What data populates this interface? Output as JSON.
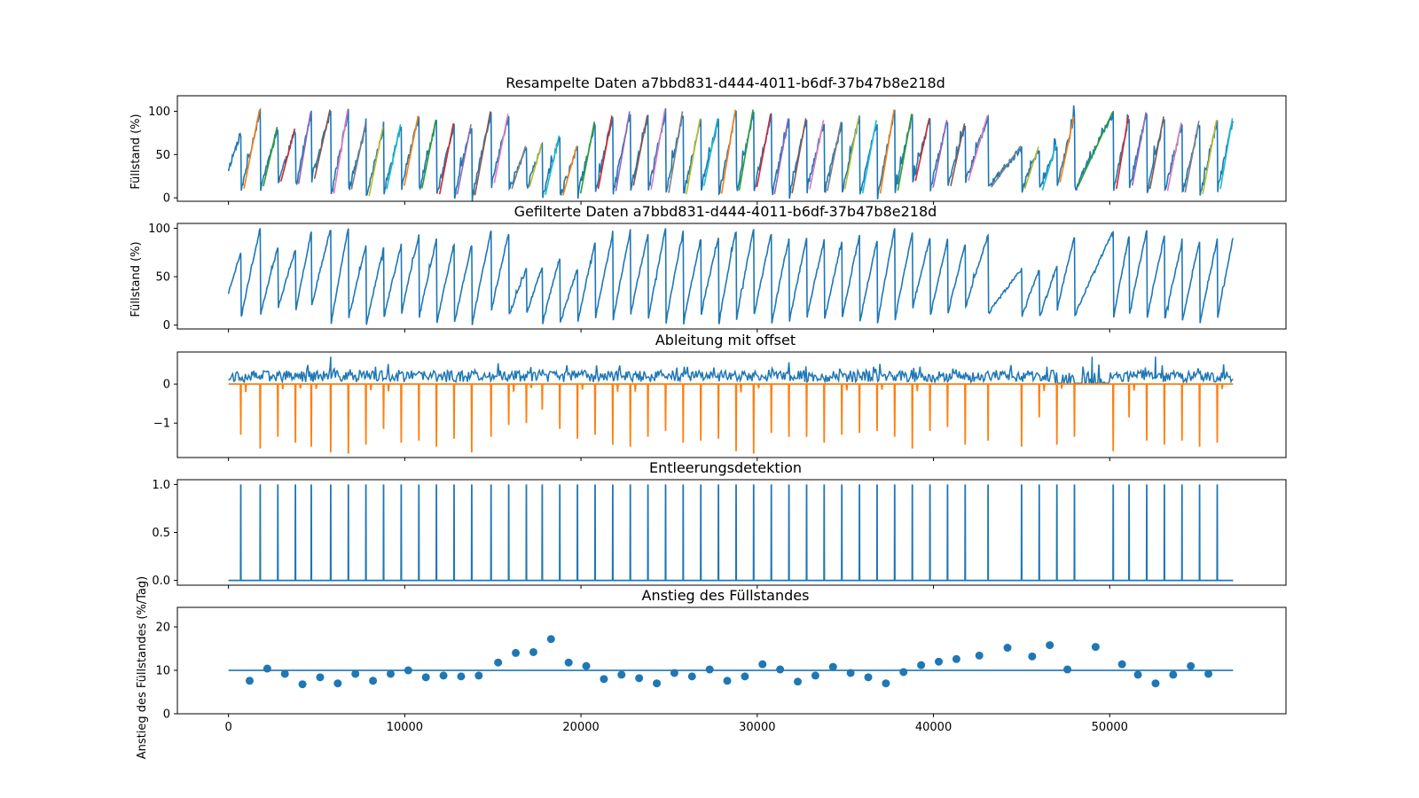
{
  "chart_data": [
    {
      "type": "line",
      "title": "Resampelte Daten a7bbd831-d444-4011-b6df-37b47b8e218d",
      "ylabel": "Füllstand (%)",
      "xlim": [
        -2900,
        60000
      ],
      "ylim": [
        -4,
        118
      ],
      "yticks": [
        0,
        50,
        100
      ],
      "x_tick_labels_shown": false,
      "series": [
        {
          "x": [
            0
          ],
          "y": [
            33
          ]
        }
      ],
      "emptying_x": [
        700,
        1800,
        2800,
        3800,
        4700,
        5800,
        6800,
        7800,
        8800,
        9800,
        10800,
        11800,
        12800,
        13800,
        14900,
        15900,
        16900,
        17800,
        18800,
        19800,
        20800,
        21800,
        22800,
        23800,
        24800,
        25800,
        26800,
        27800,
        28800,
        29800,
        30800,
        31800,
        32800,
        33800,
        34800,
        35800,
        36800,
        37800,
        38800,
        39800,
        40800,
        41800,
        43100,
        45000,
        46000,
        47000,
        48000,
        50200,
        51100,
        52100,
        53100,
        54100,
        55100,
        56100
      ],
      "peaks": [
        75,
        100,
        80,
        78,
        97,
        100,
        100,
        82,
        80,
        83,
        93,
        88,
        84,
        83,
        98,
        95,
        58,
        60,
        70,
        58,
        86,
        93,
        98,
        93,
        100,
        98,
        90,
        90,
        100,
        100,
        95,
        90,
        90,
        88,
        86,
        92,
        88,
        100,
        95,
        90,
        88,
        84,
        93,
        58,
        57,
        60,
        92,
        97,
        93,
        97,
        92,
        85,
        87,
        88
      ],
      "troughs": [
        33,
        8,
        12,
        18,
        14,
        20,
        2,
        8,
        0,
        8,
        12,
        9,
        2,
        2,
        0,
        15,
        10,
        12,
        2,
        2,
        3,
        8,
        5,
        12,
        7,
        3,
        2,
        12,
        2,
        6,
        10,
        2,
        3,
        8,
        6,
        8,
        3,
        2,
        6,
        18,
        10,
        12,
        18,
        12,
        10,
        8,
        16,
        10,
        8,
        12,
        8,
        6,
        4,
        2,
        8
      ],
      "end_y": 90
    },
    {
      "type": "line",
      "title": "Gefilterte Daten a7bbd831-d444-4011-b6df-37b47b8e218d",
      "ylabel": "Füllstand (%)",
      "xlim": [
        -2900,
        60000
      ],
      "ylim": [
        -4,
        105
      ],
      "yticks": [
        0,
        50,
        100
      ],
      "x_tick_labels_shown": false,
      "series": [
        {
          "x": [
            0,
            57000
          ],
          "y": [
            33,
            90
          ]
        }
      ]
    },
    {
      "type": "line",
      "title": "Ableitung mit offset",
      "xlim": [
        -2900,
        60000
      ],
      "ylim": [
        -1.88,
        0.82
      ],
      "yticks": [
        0,
        -1
      ],
      "ytick_labels": [
        "0",
        "−1"
      ],
      "x_tick_labels_shown": false,
      "series": [
        {
          "values_range": [
            0,
            0.7
          ],
          "color": "#1f77b4"
        },
        {
          "values_range": [
            -1.8,
            0
          ],
          "color": "#ff7f0e"
        }
      ]
    },
    {
      "type": "line",
      "title": "Entleerungsdetektion",
      "xlim": [
        -2900,
        60000
      ],
      "ylim": [
        -0.05,
        1.05
      ],
      "yticks": [
        0.0,
        0.5,
        1.0
      ],
      "ytick_labels": [
        "0.0",
        "0.5",
        "1.0"
      ],
      "x_tick_labels_shown": false,
      "series": [
        {
          "spike_value": 1.0,
          "baseline": 0.0
        }
      ]
    },
    {
      "type": "scatter",
      "title": "Anstieg des Füllstandes",
      "ylabel": "Anstieg des Füllstandes (%/Tag)",
      "xlim": [
        -2900,
        60000
      ],
      "ylim": [
        0,
        24.5
      ],
      "yticks": [
        0,
        10,
        20
      ],
      "xticks": [
        0,
        10000,
        20000,
        30000,
        40000,
        50000
      ],
      "xtick_labels": [
        "0",
        "10000",
        "20000",
        "30000",
        "40000",
        "50000"
      ],
      "reference_line": {
        "y": 10,
        "x": [
          0,
          57000
        ]
      },
      "series": [
        {
          "x": [
            1200,
            2200,
            3200,
            4200,
            5200,
            6200,
            7200,
            8200,
            9200,
            10200,
            11200,
            12200,
            13200,
            14200,
            15300,
            16300,
            17300,
            18300,
            19300,
            20300,
            21300,
            22300,
            23300,
            24300,
            25300,
            26300,
            27300,
            28300,
            29300,
            30300,
            31300,
            32300,
            33300,
            34300,
            35300,
            36300,
            37300,
            38300,
            39300,
            40300,
            41300,
            42600,
            44200,
            45600,
            46600,
            47600,
            49200,
            50700,
            51600,
            52600,
            53600,
            54600,
            55600
          ],
          "y": [
            7.6,
            10.4,
            9.2,
            6.8,
            8.4,
            7.0,
            9.2,
            7.6,
            9.2,
            10.0,
            8.4,
            8.8,
            8.6,
            8.8,
            11.8,
            14.0,
            14.2,
            17.2,
            11.8,
            11.0,
            8.0,
            9.0,
            8.2,
            7.0,
            9.4,
            8.6,
            10.2,
            7.6,
            8.6,
            11.4,
            10.2,
            7.4,
            8.8,
            10.8,
            9.4,
            8.4,
            7.0,
            9.6,
            11.2,
            12.0,
            12.6,
            13.4,
            15.2,
            13.2,
            15.8,
            10.2,
            15.4,
            11.4,
            9.0,
            7.0,
            9.0,
            11.0,
            9.2
          ]
        }
      ]
    }
  ],
  "colors": {
    "primary": "#1f77b4",
    "secondary": "#ff7f0e",
    "segment_palette": [
      "#ff7f0e",
      "#2ca02c",
      "#d62728",
      "#9467bd",
      "#8c564b",
      "#e377c2",
      "#7f7f7f",
      "#bcbd22",
      "#17becf"
    ]
  }
}
